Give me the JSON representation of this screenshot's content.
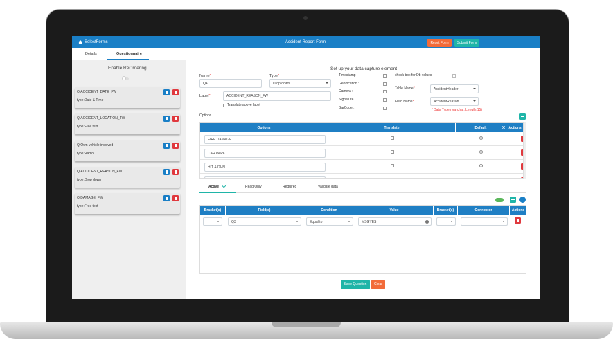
{
  "header": {
    "logo": "SelectForms",
    "title": "Accident Report Form",
    "buttons": [
      "Reset Form",
      "Submit Form"
    ]
  },
  "tabs": [
    "Details",
    "Questionnaire"
  ],
  "sidebar": {
    "heading": "Enable ReOrdering",
    "items": [
      {
        "question": "Q:ACCIDENT_DATE_FW",
        "type": "type:Date & Time"
      },
      {
        "question": "Q:ACCIDENT_LOCATION_FW",
        "type": "type:Free text"
      },
      {
        "question": "Q:Own vehicle involved",
        "type": "type:Radio"
      },
      {
        "question": "Q:ACCIDENT_REASON_FW",
        "type": "type:Drop down"
      },
      {
        "question": "Q:DAMAGE_FW",
        "type": "type:Free text"
      }
    ]
  },
  "form": {
    "heading": "Set up your data capture element",
    "required_mark": "*",
    "name_label": "Name",
    "name_value": "Q4",
    "type_label": "Type",
    "type_value": "Drop down",
    "label_label": "Label",
    "label_value": "ACCIDENT_REASON_FW",
    "translate_above": "Translate above label",
    "checkboxes": [
      "Timestamp :",
      "Geolocation :",
      "Camera :",
      "Signature :",
      "BarCode :"
    ],
    "check_db": "check box for Db values",
    "table_name_label": "Table Name",
    "table_name_value": "AccidentHeader",
    "field_name_label": "Field Name",
    "field_name_value": "AccidentReason",
    "field_note": "( Data Type:nvarchar, Length:15)",
    "options_label": "Options :",
    "buttons": [
      "Save Question",
      "Clear"
    ]
  },
  "options_table": {
    "headers": [
      "Options",
      "Translate",
      "Default",
      "Actions"
    ],
    "rows": [
      "FIRE DAMAGE",
      "CAR PARK",
      "HIT & RUN"
    ]
  },
  "condition_tabs": [
    "Active",
    "Read Only",
    "Required",
    "Validate data"
  ],
  "conditions_table": {
    "headers": [
      "Bracket(s)",
      "Field(s)",
      "Condition",
      "Value",
      "Bracket(s)",
      "Connector",
      "Actions"
    ],
    "row": {
      "field": "Q3",
      "condition": "Equal to",
      "value": "MSGYES"
    }
  }
}
